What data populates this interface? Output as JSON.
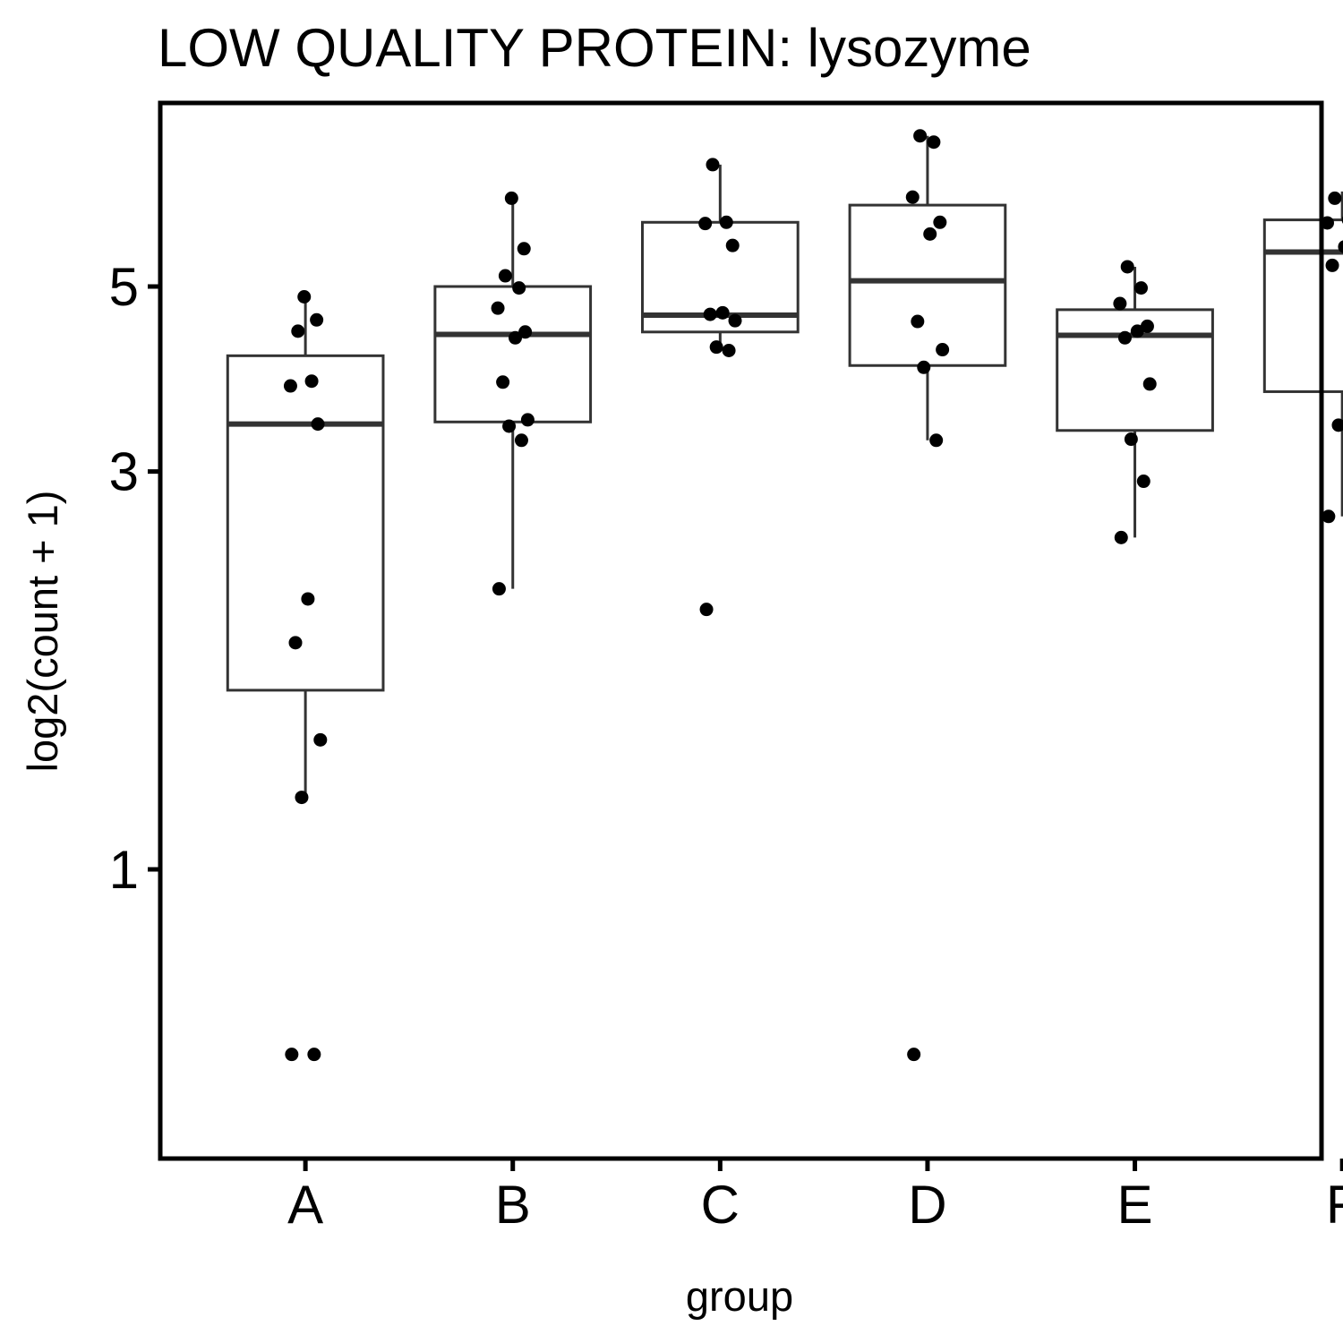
{
  "chart_data": {
    "type": "box",
    "title": "LOW QUALITY PROTEIN: lysozyme",
    "xlabel": "group",
    "ylabel": "log2(count + 1)",
    "scale": "log",
    "yticks": [
      1,
      3,
      5
    ],
    "ylim": [
      0.45,
      8.3
    ],
    "categories": [
      "A",
      "B",
      "C",
      "D",
      "E",
      "F"
    ],
    "boxes": [
      {
        "group": "A",
        "q1": 1.64,
        "median": 3.42,
        "q3": 4.13,
        "whisker_low": 1.22,
        "whisker_high": 4.86
      },
      {
        "group": "B",
        "q1": 3.44,
        "median": 4.38,
        "q3": 5.0,
        "whisker_low": 2.17,
        "whisker_high": 6.38
      },
      {
        "group": "C",
        "q1": 4.41,
        "median": 4.62,
        "q3": 5.97,
        "whisker_low": 4.23,
        "whisker_high": 7.0
      },
      {
        "group": "D",
        "q1": 4.02,
        "median": 5.08,
        "q3": 6.26,
        "whisker_low": 3.27,
        "whisker_high": 7.58
      },
      {
        "group": "E",
        "q1": 3.36,
        "median": 4.37,
        "q3": 4.69,
        "whisker_low": 2.5,
        "whisker_high": 5.28
      },
      {
        "group": "F",
        "q1": 3.74,
        "median": 5.5,
        "q3": 6.01,
        "whisker_low": 2.65,
        "whisker_high": 6.5
      }
    ],
    "points": [
      {
        "group": "A",
        "values": [
          0.6,
          0.6,
          1.22,
          1.43,
          1.87,
          2.11,
          3.42,
          3.8,
          3.85,
          4.42,
          4.56,
          4.86
        ]
      },
      {
        "group": "B",
        "values": [
          2.17,
          3.27,
          3.4,
          3.46,
          3.84,
          4.34,
          4.41,
          4.71,
          4.98,
          5.15,
          5.55,
          6.38
        ]
      },
      {
        "group": "C",
        "values": [
          2.05,
          4.19,
          4.23,
          4.55,
          4.63,
          4.65,
          5.6,
          5.95,
          5.97,
          7.0
        ]
      },
      {
        "group": "D",
        "values": [
          0.6,
          3.27,
          4.0,
          4.2,
          4.54,
          5.78,
          5.97,
          6.4,
          7.45,
          7.58
        ]
      },
      {
        "group": "E",
        "values": [
          2.5,
          2.92,
          3.28,
          3.82,
          4.34,
          4.42,
          4.48,
          4.77,
          4.98,
          5.28
        ]
      },
      {
        "group": "F",
        "values": [
          2.65,
          3.24,
          3.41,
          4.23,
          5.3,
          5.58,
          5.86,
          5.96,
          6.01,
          6.38,
          6.5
        ]
      }
    ],
    "grid": false,
    "legend": "none",
    "colors": {
      "point": "#000000",
      "box_stroke": "#333333",
      "panel_border": "#000000",
      "background": "#ffffff"
    }
  }
}
